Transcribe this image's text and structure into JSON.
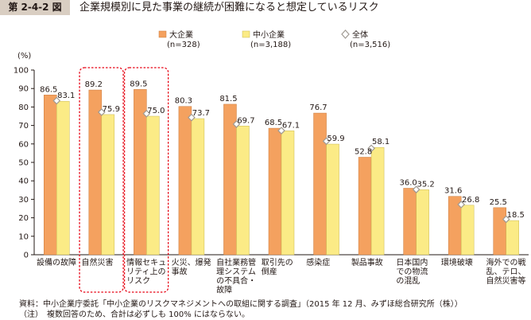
{
  "figure": {
    "number": "第 2-4-2 図",
    "title": "企業規模別に見た事業の継続が困難になると想定しているリスク"
  },
  "notes": {
    "source": "資料：中小企業庁委託「中小企業のリスクマネジメントへの取組に関する調査」（2015 年 12 月、みずほ総合研究所（株））",
    "note": "（注）　複数回答のため、合計は必ずしも 100% にはならない。"
  },
  "colors": {
    "large": "#f4a15f",
    "sme": "#fbeb86",
    "overall_marker": "#a09a92",
    "highlight_box": "#e60012",
    "axis": "#231815"
  },
  "chart_data": {
    "type": "bar",
    "ylabel": "(%)",
    "ylim": [
      0,
      100
    ],
    "yticks": [
      0,
      10,
      20,
      30,
      40,
      50,
      60,
      70,
      80,
      90,
      100
    ],
    "legend_position": "top",
    "categories": [
      [
        "設備の故障"
      ],
      [
        "自然災害"
      ],
      [
        "情報セキュ",
        "リティ上の",
        "リスク"
      ],
      [
        "火災、爆発",
        "事故"
      ],
      [
        "自社業務管",
        "理システム",
        "の不具合・",
        "故障"
      ],
      [
        "取引先の",
        "倒産"
      ],
      [
        "感染症"
      ],
      [
        "製品事故"
      ],
      [
        "日本国内",
        "での物流",
        "の混乱"
      ],
      [
        "環境破壊"
      ],
      [
        "海外での戦",
        "乱、テロ、",
        "自然災害等"
      ]
    ],
    "highlighted_categories": [
      1,
      2
    ],
    "series": [
      {
        "name": "大企業",
        "n": "(n=328)",
        "marker": "bar",
        "values": [
          86.5,
          89.2,
          89.5,
          80.3,
          81.5,
          68.5,
          76.7,
          52.8,
          36.0,
          31.6,
          25.5
        ]
      },
      {
        "name": "中小企業",
        "n": "(n=3,188)",
        "marker": "bar",
        "values": [
          83.1,
          75.9,
          75.0,
          73.7,
          69.7,
          67.1,
          59.9,
          58.1,
          35.2,
          26.8,
          18.5
        ]
      },
      {
        "name": "全体",
        "n": "(n=3,516)",
        "marker": "diamond",
        "values": [
          83.4,
          77.2,
          76.4,
          74.3,
          70.7,
          67.2,
          61.5,
          57.6,
          35.3,
          27.2,
          19.2
        ]
      }
    ],
    "value_labels": [
      [
        "86.5",
        "83.1"
      ],
      [
        "89.2",
        "75.9"
      ],
      [
        "89.5",
        "75.0"
      ],
      [
        "80.3",
        "73.7"
      ],
      [
        "81.5",
        "69.7"
      ],
      [
        "68.5",
        "67.1"
      ],
      [
        "76.7",
        "59.9"
      ],
      [
        "52.8",
        "58.1"
      ],
      [
        "36.0",
        "35.2"
      ],
      [
        "31.6",
        "26.8"
      ],
      [
        "25.5",
        "18.5"
      ]
    ]
  }
}
